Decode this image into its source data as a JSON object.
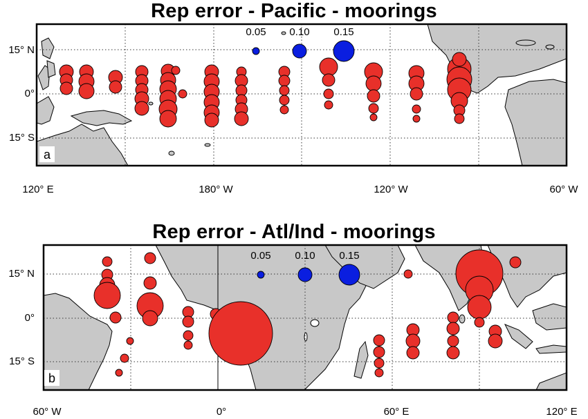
{
  "panels": [
    {
      "id": "a",
      "title": "Rep error - Pacific - moorings",
      "letter": "a",
      "lat_labels": [
        "15° N",
        "0°",
        "15° S"
      ],
      "lon_labels": [
        "120° E",
        "180° W",
        "120° W",
        "60° W"
      ],
      "scale_labels": [
        "0.05",
        "0.10",
        "0.15"
      ],
      "scale_values": [
        0.05,
        0.1,
        0.15
      ],
      "marker_color_data": "#e8302a",
      "marker_color_scale": "#0a1ee0",
      "land_color": "#c8c8c8"
    },
    {
      "id": "b",
      "title": "Rep error - Atl/Ind - moorings",
      "letter": "b",
      "lat_labels": [
        "15° N",
        "0°",
        "15° S"
      ],
      "lon_labels": [
        "60° W",
        "0°",
        "60° E",
        "120° E"
      ],
      "scale_labels": [
        "0.05",
        "0.10",
        "0.15"
      ],
      "scale_values": [
        0.05,
        0.1,
        0.15
      ],
      "marker_color_data": "#e8302a",
      "marker_color_scale": "#0a1ee0",
      "land_color": "#c8c8c8"
    }
  ]
}
